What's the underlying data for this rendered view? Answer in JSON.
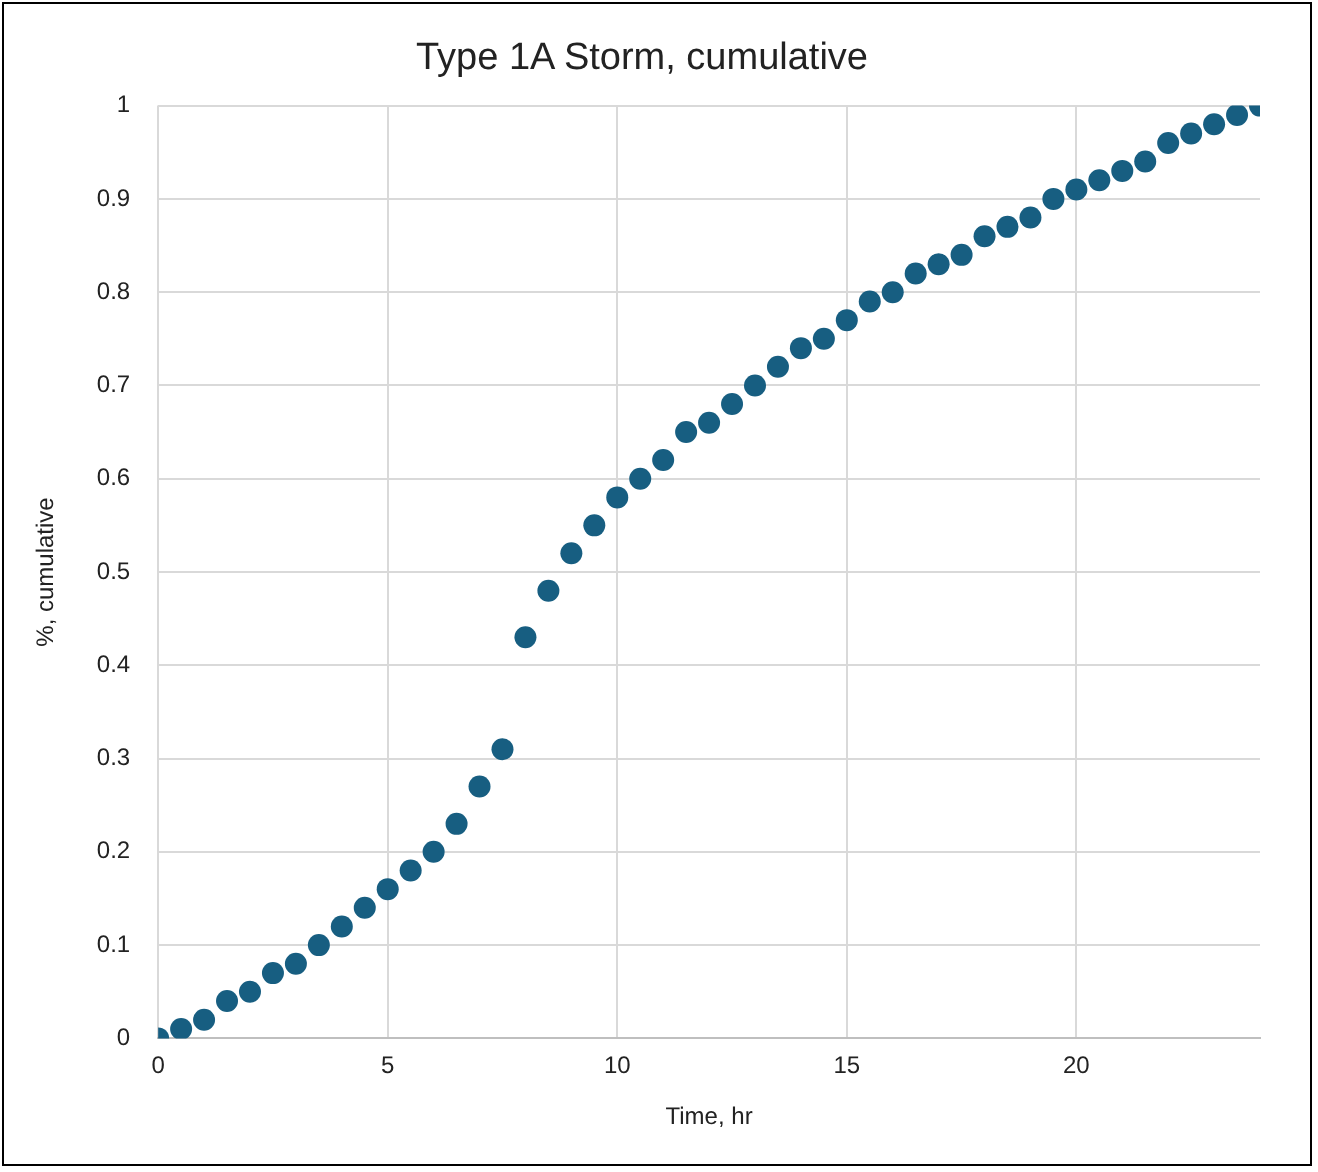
{
  "chart_data": {
    "type": "scatter",
    "title": "Type 1A Storm, cumulative",
    "xlabel": "Time, hr",
    "ylabel": "%, cumulative",
    "x": [
      0,
      0.5,
      1,
      1.5,
      2,
      2.5,
      3,
      3.5,
      4,
      4.5,
      5,
      5.5,
      6,
      6.5,
      7,
      7.5,
      8,
      8.5,
      9,
      9.5,
      10,
      10.5,
      11,
      11.5,
      12,
      12.5,
      13,
      13.5,
      14,
      14.5,
      15,
      15.5,
      16,
      16.5,
      17,
      17.5,
      18,
      18.5,
      19,
      19.5,
      20,
      20.5,
      21,
      21.5,
      22,
      22.5,
      23,
      23.5,
      24
    ],
    "series": [
      {
        "color": "#175e81",
        "values": [
          0,
          0.01,
          0.02,
          0.04,
          0.05,
          0.07,
          0.08,
          0.1,
          0.12,
          0.14,
          0.16,
          0.18,
          0.2,
          0.23,
          0.27,
          0.31,
          0.43,
          0.48,
          0.52,
          0.55,
          0.58,
          0.6,
          0.62,
          0.65,
          0.66,
          0.68,
          0.7,
          0.72,
          0.74,
          0.75,
          0.77,
          0.79,
          0.8,
          0.82,
          0.83,
          0.84,
          0.86,
          0.87,
          0.88,
          0.9,
          0.91,
          0.92,
          0.93,
          0.94,
          0.96,
          0.97,
          0.98,
          0.99,
          1
        ]
      }
    ],
    "xlim": [
      0,
      24
    ],
    "xticks": [
      0,
      5,
      10,
      15,
      20
    ],
    "ylim": [
      0,
      1
    ],
    "yticks": [
      0,
      0.1,
      0.2,
      0.3,
      0.4,
      0.5,
      0.6,
      0.7,
      0.8,
      0.9,
      1
    ],
    "grid": true,
    "legend": false,
    "marker": "circle"
  }
}
